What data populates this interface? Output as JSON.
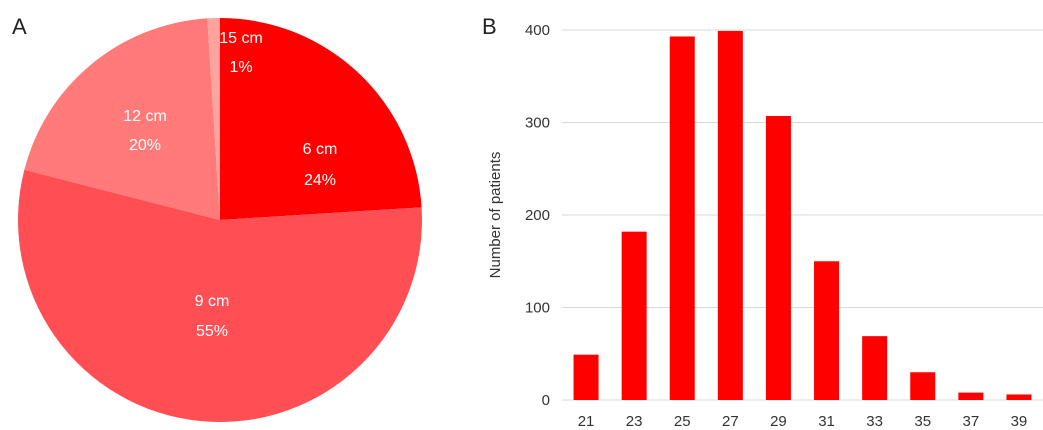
{
  "panels": {
    "a_letter": "A",
    "b_letter": "B"
  },
  "chart_data": [
    {
      "type": "pie",
      "title": "",
      "slices": [
        {
          "label": "6 cm",
          "percent_label": "24%",
          "value": 24,
          "color": "#ff0000"
        },
        {
          "label": "9 cm",
          "percent_label": "55%",
          "value": 55,
          "color": "#ff4f55"
        },
        {
          "label": "12 cm",
          "percent_label": "20%",
          "value": 20,
          "color": "#ff7a78"
        },
        {
          "label": "15 cm",
          "percent_label": "1%",
          "value": 1,
          "color": "#ffa39e"
        }
      ]
    },
    {
      "type": "bar",
      "title": "",
      "xlabel": "",
      "ylabel": "Number of patients",
      "categories": [
        "21",
        "23",
        "25",
        "27",
        "29",
        "31",
        "33",
        "35",
        "37",
        "39"
      ],
      "values": [
        49,
        182,
        393,
        399,
        307,
        150,
        69,
        30,
        8,
        6
      ],
      "ylim": [
        0,
        400
      ],
      "yticks": [
        "0",
        "100",
        "200",
        "300",
        "400"
      ],
      "grid": true,
      "color": "#ff0000"
    }
  ]
}
